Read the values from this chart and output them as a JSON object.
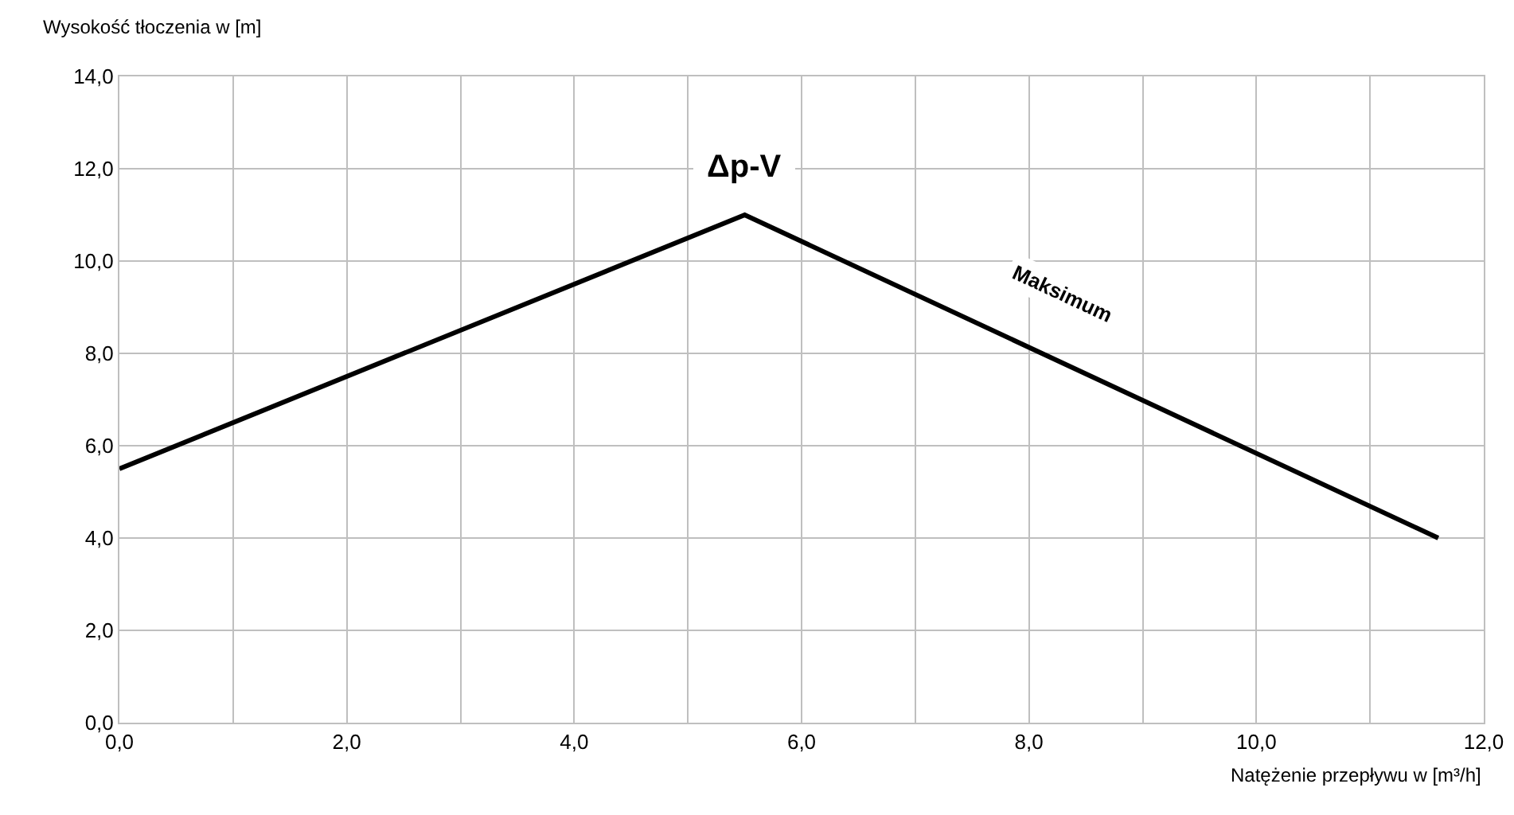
{
  "chart_data": {
    "type": "line",
    "xlabel": "Natężenie przepływu w [m³/h]",
    "ylabel": "Wysokość tłoczenia w [m]",
    "x": [
      0,
      5.5,
      11.6
    ],
    "series": [
      {
        "color": "#000000",
        "values": [
          5.5,
          11.0,
          4.0
        ]
      }
    ],
    "xlim": [
      0,
      12
    ],
    "ylim": [
      0,
      14
    ],
    "xticks": [
      {
        "value": 0,
        "label": "0,0"
      },
      {
        "value": 1,
        "label": null
      },
      {
        "value": 2,
        "label": "2,0"
      },
      {
        "value": 3,
        "label": null
      },
      {
        "value": 4,
        "label": "4,0"
      },
      {
        "value": 5,
        "label": null
      },
      {
        "value": 6,
        "label": "6,0"
      },
      {
        "value": 7,
        "label": null
      },
      {
        "value": 8,
        "label": "8,0"
      },
      {
        "value": 9,
        "label": null
      },
      {
        "value": 10,
        "label": "10,0"
      },
      {
        "value": 11,
        "label": null
      },
      {
        "value": 12,
        "label": "12,0"
      }
    ],
    "yticks": [
      {
        "value": 0,
        "label": "0,0"
      },
      {
        "value": 2,
        "label": "2,0"
      },
      {
        "value": 4,
        "label": "4,0"
      },
      {
        "value": 6,
        "label": "6,0"
      },
      {
        "value": 8,
        "label": "8,0"
      },
      {
        "value": 10,
        "label": "10,0"
      },
      {
        "value": 12,
        "label": "12,0"
      },
      {
        "value": 14,
        "label": "14,0"
      }
    ],
    "annotations": [
      "Δp-V",
      "Maksimum"
    ],
    "grid": true,
    "marker": "none",
    "line_style": "solid"
  }
}
